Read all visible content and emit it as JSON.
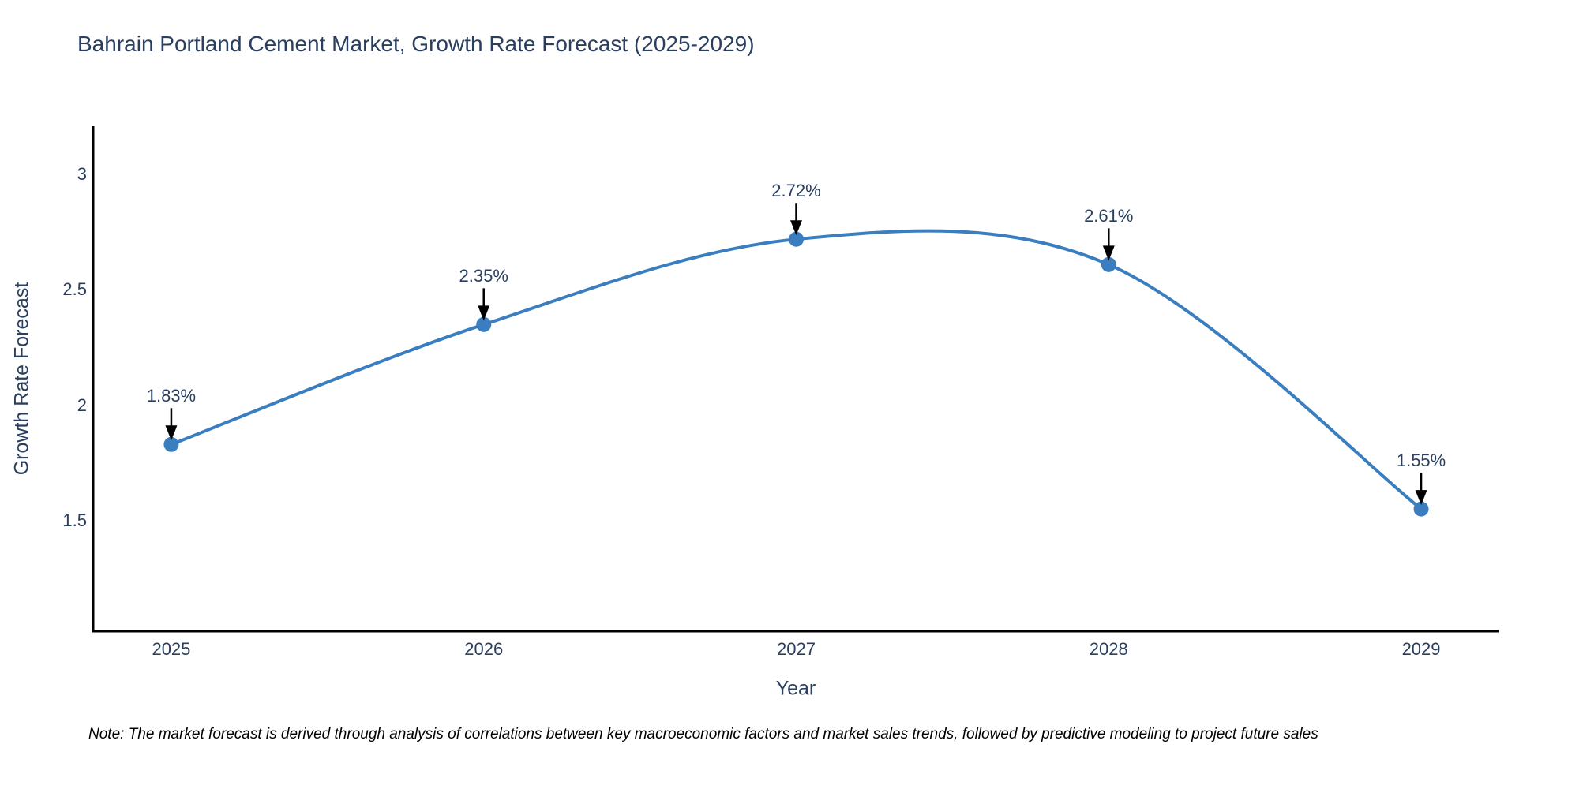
{
  "chart_data": {
    "type": "line",
    "line_shape": "spline",
    "title": "Bahrain Portland Cement Market, Growth Rate Forecast (2025-2029)",
    "xlabel": "Year",
    "ylabel": "Growth Rate Forecast",
    "x": [
      2025,
      2026,
      2027,
      2028,
      2029
    ],
    "values": [
      1.83,
      2.35,
      2.72,
      2.61,
      1.55
    ],
    "point_labels": [
      "1.83%",
      "2.35%",
      "2.72%",
      "2.61%",
      "1.55%"
    ],
    "x_tick_values": [
      2025,
      2026,
      2027,
      2028,
      2029
    ],
    "x_tick_labels": [
      "2025",
      "2026",
      "2027",
      "2028",
      "2029"
    ],
    "y_tick_values": [
      1.5,
      2,
      2.5,
      3
    ],
    "y_tick_labels": [
      "1.5",
      "2",
      "2.5",
      "3"
    ],
    "xlim": [
      2024.75,
      2029.25
    ],
    "ylim": [
      1.02,
      3.21
    ],
    "grid": false,
    "legend": false,
    "line_color": "#3a7ebf",
    "marker_color": "#3a7ebf",
    "axis_color": "#000000",
    "arrow_color": "#000000",
    "text_color": "#2a3f5f"
  },
  "note": "Note: The market forecast is derived through analysis of correlations between key macroeconomic factors and market sales trends, followed by predictive modeling to project future sales",
  "background_color": "#ffffff"
}
